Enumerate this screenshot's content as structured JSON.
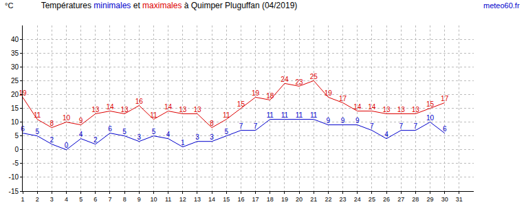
{
  "chart_data": {
    "type": "line",
    "title": "Températures minimales et maximales à Quimper Pluguffan (04/2019)",
    "y_label": "°C",
    "annotations": [
      "meteo60.fr"
    ],
    "x": [
      1,
      2,
      3,
      4,
      5,
      6,
      7,
      8,
      9,
      10,
      11,
      12,
      13,
      14,
      15,
      16,
      17,
      18,
      19,
      20,
      21,
      22,
      23,
      24,
      25,
      26,
      27,
      28,
      29,
      30
    ],
    "series": [
      {
        "name": "minimales",
        "color": "#0000cc",
        "values": [
          6,
          5,
          2,
          0,
          4,
          2,
          6,
          5,
          3,
          5,
          4,
          1,
          3,
          3,
          5,
          7,
          7,
          11,
          11,
          11,
          11,
          9,
          9,
          9,
          7,
          4,
          7,
          7,
          10,
          6
        ]
      },
      {
        "name": "maximales",
        "color": "#dd0000",
        "values": [
          19,
          11,
          8,
          10,
          9,
          13,
          14,
          13,
          16,
          11,
          14,
          13,
          13,
          8,
          11,
          15,
          19,
          18,
          24,
          23,
          25,
          19,
          17,
          14,
          14,
          13,
          13,
          13,
          15,
          17
        ]
      }
    ],
    "xlim": [
      1,
      32
    ],
    "xticks": [
      1,
      2,
      3,
      4,
      5,
      6,
      7,
      8,
      9,
      10,
      11,
      12,
      13,
      14,
      15,
      16,
      17,
      18,
      19,
      20,
      21,
      22,
      23,
      24,
      25,
      26,
      27,
      28,
      29,
      30,
      31
    ],
    "ylim": [
      -15,
      45
    ],
    "yticks": [
      -15,
      -10,
      -5,
      0,
      5,
      10,
      15,
      20,
      25,
      30,
      35,
      40
    ],
    "grid": true,
    "data_labels": true
  }
}
